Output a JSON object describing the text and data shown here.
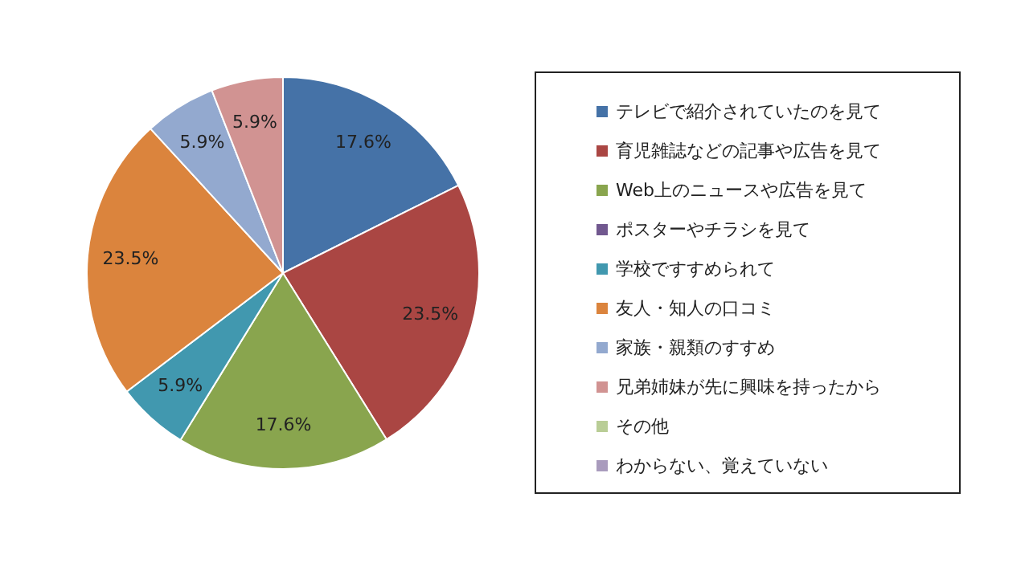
{
  "chart_data": {
    "type": "pie",
    "categories": [
      "テレビで紹介されていたのを見て",
      "育児雑誌などの記事や広告を見て",
      "Web上のニュースや広告を見て",
      "ポスターやチラシを見て",
      "学校ですすめられて",
      "友人・知人の口コミ",
      "家族・親類のすすめ",
      "兄弟姉妹が先に興味を持ったから",
      "その他",
      "わからない、覚えていない"
    ],
    "values": [
      17.6,
      23.5,
      17.6,
      0,
      5.9,
      23.5,
      5.9,
      5.9,
      0,
      0
    ],
    "value_labels": [
      "17.6%",
      "23.5%",
      "17.6%",
      null,
      "5.9%",
      "23.5%",
      "5.9%",
      "5.9%",
      null,
      null
    ],
    "colors": [
      "#4572a7",
      "#aa4643",
      "#89a54e",
      "#71588f",
      "#4198af",
      "#db843d",
      "#93a9cf",
      "#d19392",
      "#b9cd96",
      "#a99bbd"
    ],
    "legend": "right"
  }
}
